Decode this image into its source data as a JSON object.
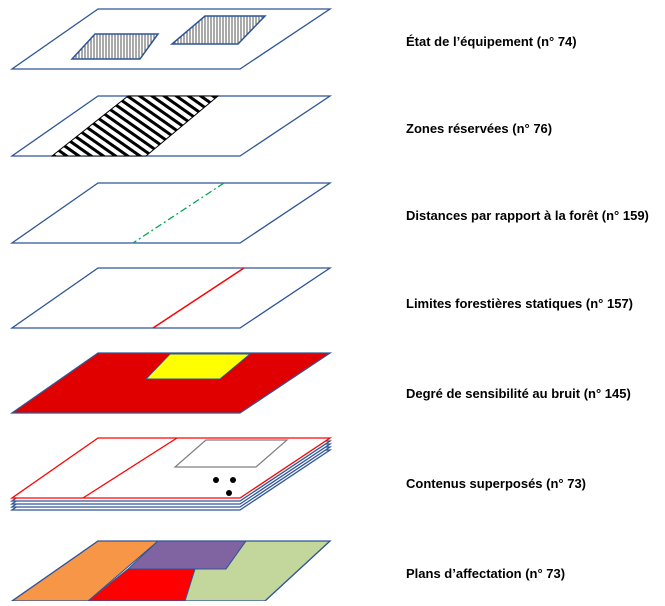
{
  "layers": [
    {
      "id": "equipment",
      "label": "État de l’équipement (n° 74)"
    },
    {
      "id": "reserved",
      "label": "Zones réservées (n° 76)"
    },
    {
      "id": "forest-distance",
      "label": "Distances par rapport à la forêt (n° 159)"
    },
    {
      "id": "forest-limits",
      "label": "Limites forestières statiques (n° 157)"
    },
    {
      "id": "noise",
      "label": "Degré de sensibilité au bruit (n° 145)"
    },
    {
      "id": "overlay",
      "label": "Contenus superposés (n° 73)"
    },
    {
      "id": "allocation",
      "label": "Plans d’affectation (n° 73)"
    }
  ],
  "colors": {
    "outline": "#2f5597",
    "forest_distance_line": "#00a651",
    "forest_limit_line": "#ff0000",
    "noise_base": "#e00000",
    "noise_zone": "#ffff00",
    "overlay_red": "#ff0000",
    "overlay_gray": "#7f7f7f",
    "allocation_orange": "#f79646",
    "allocation_purple": "#8064a2",
    "allocation_red": "#ff0000",
    "allocation_green": "#c3d69b"
  }
}
